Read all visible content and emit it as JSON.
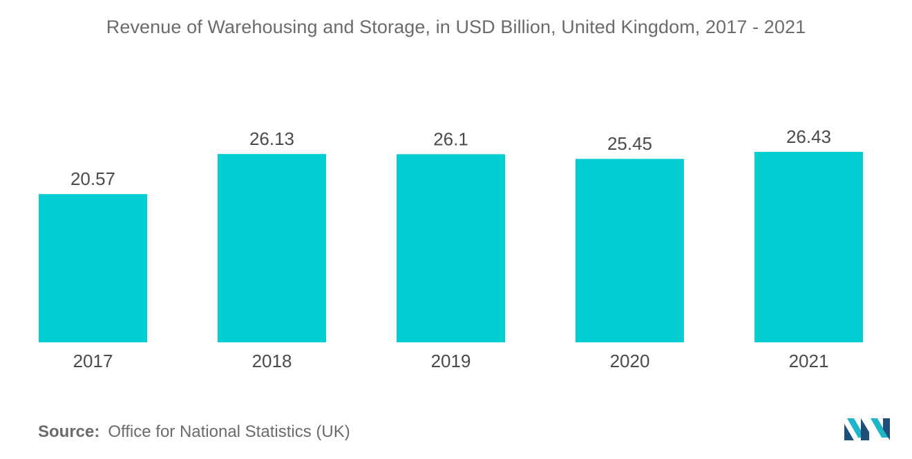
{
  "title": "Revenue of Warehousing and Storage, in USD Billion, United Kingdom, 2017 - 2021",
  "source": {
    "label": "Source:",
    "text": "Office for National Statistics (UK)"
  },
  "colors": {
    "bar": "#00CED1",
    "text": "#4a4a4a",
    "title": "#6b6b6b",
    "logo_dark": "#1f4e79",
    "logo_light": "#1fb5c9"
  },
  "logo": {
    "icon": "mordor-intelligence-logo-icon"
  },
  "chart_data": {
    "type": "bar",
    "title": "Revenue of Warehousing and Storage, in USD Billion, United Kingdom, 2017 - 2021",
    "categories": [
      "2017",
      "2018",
      "2019",
      "2020",
      "2021"
    ],
    "values": [
      20.57,
      26.13,
      26.1,
      25.45,
      26.43
    ],
    "data_labels": [
      "20.57",
      "26.13",
      "26.1",
      "25.45",
      "26.43"
    ],
    "xlabel": "",
    "ylabel": "",
    "ylim": [
      0,
      26.43
    ],
    "grid": false,
    "legend": "none"
  }
}
